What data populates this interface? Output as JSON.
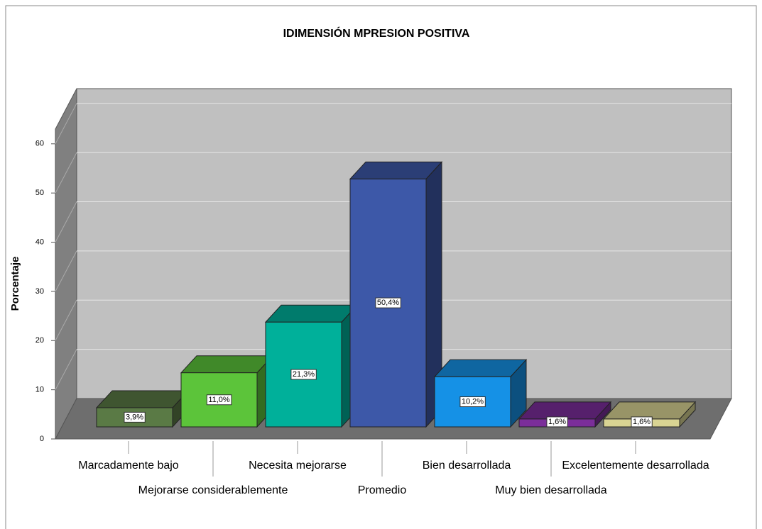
{
  "chart_data": {
    "type": "bar3d",
    "title": "IDIMENSIÓN MPRESION POSITIVA",
    "y_label": "Porcentaje",
    "categories": [
      "Marcadamente bajo",
      "Mejorarse considerablemente",
      "Necesita mejorarse",
      "Promedio",
      "Bien desarrollada",
      "Muy bien desarrollada",
      "Excelentemente desarrollada"
    ],
    "values": [
      3.9,
      11.0,
      21.3,
      50.4,
      10.2,
      1.6,
      1.6
    ],
    "value_labels": [
      "3,9%",
      "11,0%",
      "21,3%",
      "50,4%",
      "10,2%",
      "1,6%",
      "1,6%"
    ],
    "colors": [
      "#5a7a45",
      "#5cc43a",
      "#00b09a",
      "#3d58a8",
      "#1591e6",
      "#7b2e9a",
      "#d9d493"
    ],
    "ylim": [
      0,
      63
    ],
    "yticks": [
      0,
      10,
      20,
      30,
      40,
      50,
      60
    ],
    "grid": true
  }
}
